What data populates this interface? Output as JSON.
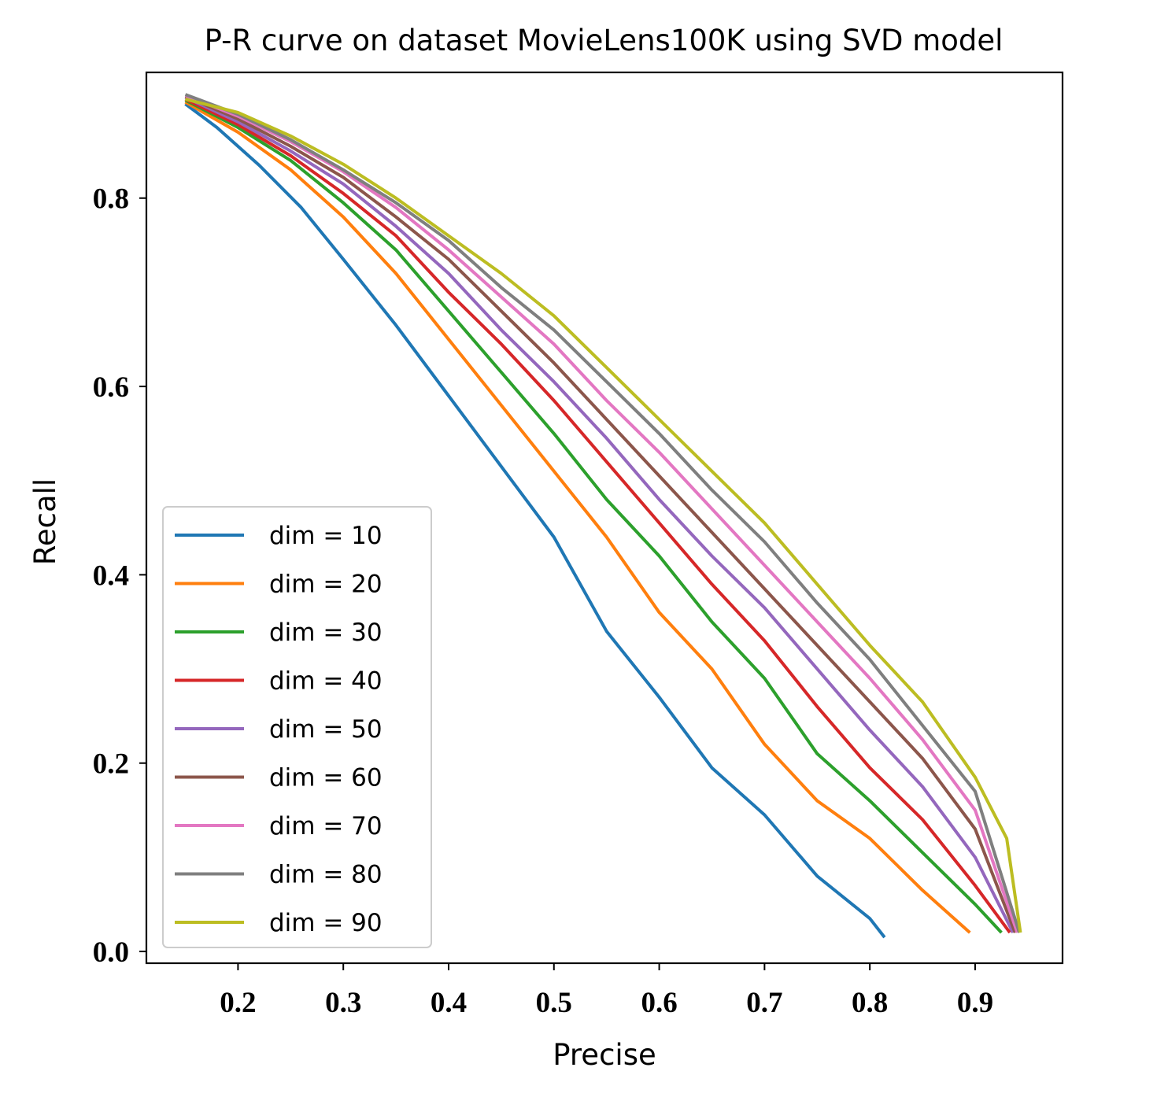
{
  "chart_data": {
    "type": "line",
    "title": "P-R curve on dataset MovieLens100K using SVD model",
    "xlabel": "Precise",
    "ylabel": "Recall",
    "xlim": [
      0.113,
      0.983
    ],
    "ylim": [
      -0.0125,
      0.9335
    ],
    "xticks": [
      0.2,
      0.3,
      0.4,
      0.5,
      0.6,
      0.7,
      0.8,
      0.9
    ],
    "xtick_labels": [
      "0.2",
      "0.3",
      "0.4",
      "0.5",
      "0.6",
      "0.7",
      "0.8",
      "0.9"
    ],
    "yticks": [
      0.0,
      0.2,
      0.4,
      0.6,
      0.8
    ],
    "ytick_labels": [
      "0.0",
      "0.2",
      "0.4",
      "0.6",
      "0.8"
    ],
    "grid": false,
    "legend_position": "lower-left",
    "series": [
      {
        "name": "dim = 10",
        "color": "#1f77b4",
        "points": [
          [
            0.15,
            0.9
          ],
          [
            0.18,
            0.875
          ],
          [
            0.22,
            0.835
          ],
          [
            0.26,
            0.79
          ],
          [
            0.3,
            0.735
          ],
          [
            0.35,
            0.665
          ],
          [
            0.4,
            0.59
          ],
          [
            0.45,
            0.515
          ],
          [
            0.5,
            0.44
          ],
          [
            0.55,
            0.34
          ],
          [
            0.6,
            0.27
          ],
          [
            0.65,
            0.195
          ],
          [
            0.7,
            0.145
          ],
          [
            0.75,
            0.08
          ],
          [
            0.8,
            0.035
          ],
          [
            0.814,
            0.015
          ]
        ]
      },
      {
        "name": "dim = 20",
        "color": "#ff7f0e",
        "points": [
          [
            0.15,
            0.902
          ],
          [
            0.2,
            0.87
          ],
          [
            0.25,
            0.83
          ],
          [
            0.3,
            0.78
          ],
          [
            0.35,
            0.72
          ],
          [
            0.4,
            0.65
          ],
          [
            0.45,
            0.58
          ],
          [
            0.5,
            0.51
          ],
          [
            0.55,
            0.44
          ],
          [
            0.6,
            0.36
          ],
          [
            0.65,
            0.3
          ],
          [
            0.7,
            0.22
          ],
          [
            0.75,
            0.16
          ],
          [
            0.8,
            0.12
          ],
          [
            0.85,
            0.065
          ],
          [
            0.895,
            0.02
          ]
        ]
      },
      {
        "name": "dim = 30",
        "color": "#2ca02c",
        "points": [
          [
            0.15,
            0.904
          ],
          [
            0.2,
            0.875
          ],
          [
            0.25,
            0.84
          ],
          [
            0.3,
            0.795
          ],
          [
            0.35,
            0.745
          ],
          [
            0.4,
            0.68
          ],
          [
            0.45,
            0.615
          ],
          [
            0.5,
            0.55
          ],
          [
            0.55,
            0.48
          ],
          [
            0.6,
            0.42
          ],
          [
            0.65,
            0.35
          ],
          [
            0.7,
            0.29
          ],
          [
            0.75,
            0.21
          ],
          [
            0.8,
            0.16
          ],
          [
            0.85,
            0.105
          ],
          [
            0.9,
            0.05
          ],
          [
            0.925,
            0.02
          ]
        ]
      },
      {
        "name": "dim = 40",
        "color": "#d62728",
        "points": [
          [
            0.15,
            0.905
          ],
          [
            0.2,
            0.878
          ],
          [
            0.25,
            0.845
          ],
          [
            0.3,
            0.805
          ],
          [
            0.35,
            0.76
          ],
          [
            0.4,
            0.7
          ],
          [
            0.45,
            0.645
          ],
          [
            0.5,
            0.585
          ],
          [
            0.55,
            0.52
          ],
          [
            0.6,
            0.455
          ],
          [
            0.65,
            0.39
          ],
          [
            0.7,
            0.33
          ],
          [
            0.75,
            0.26
          ],
          [
            0.8,
            0.195
          ],
          [
            0.85,
            0.14
          ],
          [
            0.9,
            0.07
          ],
          [
            0.933,
            0.02
          ]
        ]
      },
      {
        "name": "dim = 50",
        "color": "#9467bd",
        "points": [
          [
            0.15,
            0.907
          ],
          [
            0.2,
            0.881
          ],
          [
            0.25,
            0.85
          ],
          [
            0.3,
            0.815
          ],
          [
            0.35,
            0.77
          ],
          [
            0.4,
            0.72
          ],
          [
            0.45,
            0.66
          ],
          [
            0.5,
            0.605
          ],
          [
            0.55,
            0.545
          ],
          [
            0.6,
            0.48
          ],
          [
            0.65,
            0.42
          ],
          [
            0.7,
            0.365
          ],
          [
            0.75,
            0.3
          ],
          [
            0.8,
            0.235
          ],
          [
            0.85,
            0.175
          ],
          [
            0.9,
            0.1
          ],
          [
            0.936,
            0.02
          ]
        ]
      },
      {
        "name": "dim = 60",
        "color": "#8c564b",
        "points": [
          [
            0.15,
            0.908
          ],
          [
            0.2,
            0.884
          ],
          [
            0.25,
            0.855
          ],
          [
            0.3,
            0.822
          ],
          [
            0.35,
            0.78
          ],
          [
            0.4,
            0.735
          ],
          [
            0.45,
            0.68
          ],
          [
            0.5,
            0.625
          ],
          [
            0.55,
            0.565
          ],
          [
            0.6,
            0.505
          ],
          [
            0.65,
            0.445
          ],
          [
            0.7,
            0.385
          ],
          [
            0.75,
            0.325
          ],
          [
            0.8,
            0.265
          ],
          [
            0.85,
            0.205
          ],
          [
            0.9,
            0.13
          ],
          [
            0.938,
            0.02
          ]
        ]
      },
      {
        "name": "dim = 70",
        "color": "#e377c2",
        "points": [
          [
            0.15,
            0.909
          ],
          [
            0.2,
            0.887
          ],
          [
            0.25,
            0.86
          ],
          [
            0.3,
            0.828
          ],
          [
            0.35,
            0.79
          ],
          [
            0.4,
            0.745
          ],
          [
            0.45,
            0.695
          ],
          [
            0.5,
            0.645
          ],
          [
            0.55,
            0.585
          ],
          [
            0.6,
            0.53
          ],
          [
            0.65,
            0.47
          ],
          [
            0.7,
            0.41
          ],
          [
            0.75,
            0.35
          ],
          [
            0.8,
            0.29
          ],
          [
            0.85,
            0.225
          ],
          [
            0.9,
            0.15
          ],
          [
            0.94,
            0.02
          ]
        ]
      },
      {
        "name": "dim = 80",
        "color": "#7f7f7f",
        "points": [
          [
            0.15,
            0.91
          ],
          [
            0.2,
            0.889
          ],
          [
            0.25,
            0.862
          ],
          [
            0.3,
            0.83
          ],
          [
            0.35,
            0.795
          ],
          [
            0.4,
            0.755
          ],
          [
            0.45,
            0.705
          ],
          [
            0.5,
            0.66
          ],
          [
            0.55,
            0.605
          ],
          [
            0.6,
            0.55
          ],
          [
            0.65,
            0.49
          ],
          [
            0.7,
            0.435
          ],
          [
            0.75,
            0.37
          ],
          [
            0.8,
            0.31
          ],
          [
            0.85,
            0.24
          ],
          [
            0.9,
            0.17
          ],
          [
            0.942,
            0.02
          ]
        ]
      },
      {
        "name": "dim = 90",
        "color": "#bcbd22",
        "points": [
          [
            0.15,
            0.905
          ],
          [
            0.2,
            0.891
          ],
          [
            0.25,
            0.866
          ],
          [
            0.3,
            0.836
          ],
          [
            0.35,
            0.8
          ],
          [
            0.4,
            0.76
          ],
          [
            0.45,
            0.72
          ],
          [
            0.5,
            0.675
          ],
          [
            0.55,
            0.62
          ],
          [
            0.6,
            0.565
          ],
          [
            0.65,
            0.51
          ],
          [
            0.7,
            0.455
          ],
          [
            0.75,
            0.39
          ],
          [
            0.8,
            0.325
          ],
          [
            0.85,
            0.265
          ],
          [
            0.9,
            0.185
          ],
          [
            0.93,
            0.12
          ],
          [
            0.943,
            0.02
          ]
        ]
      }
    ]
  }
}
